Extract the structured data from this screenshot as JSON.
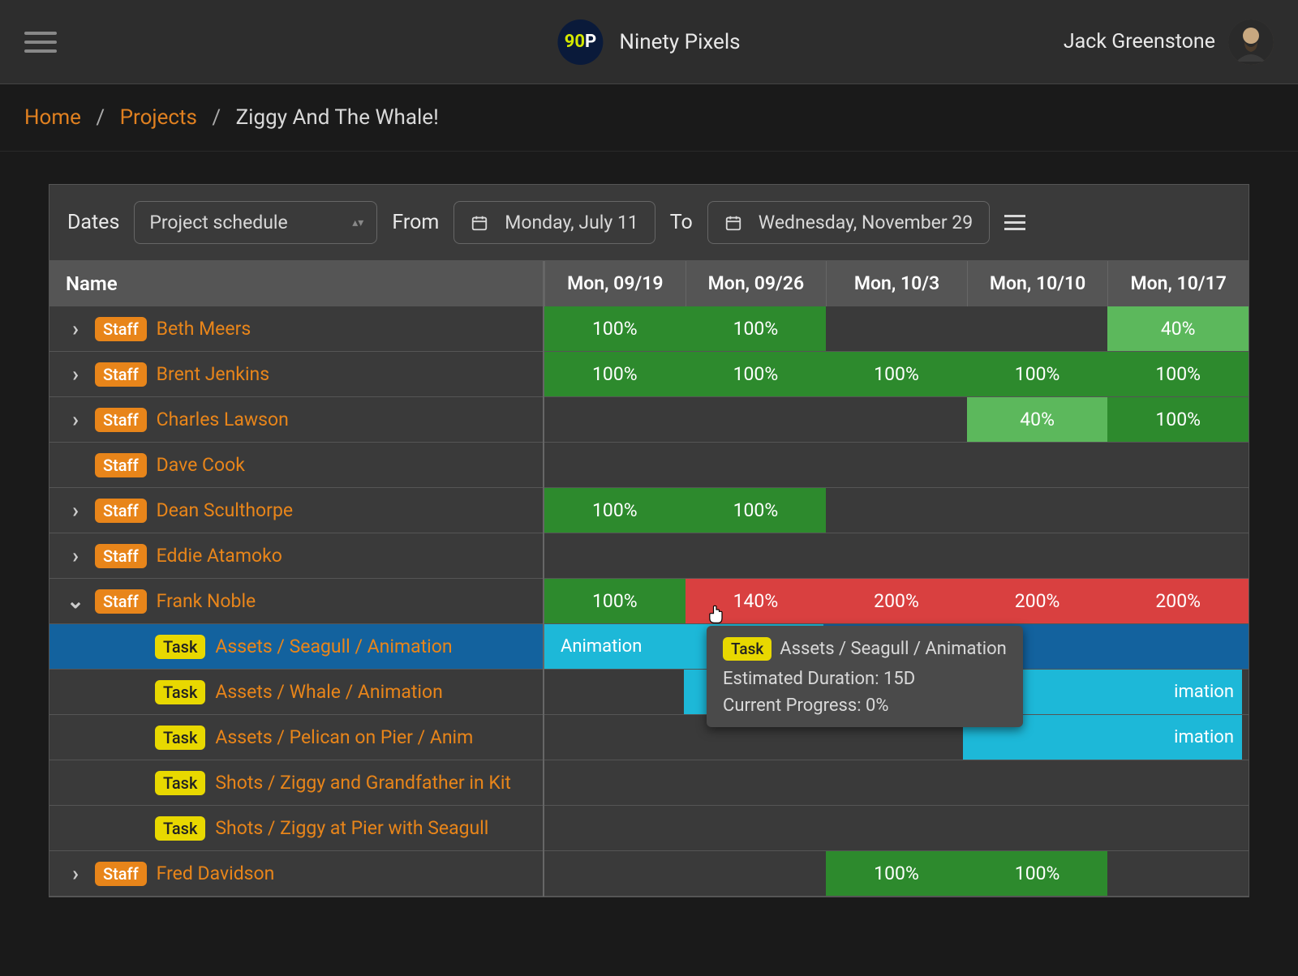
{
  "brand": {
    "logo_text_a": "90",
    "logo_text_b": "P",
    "name": "Ninety Pixels"
  },
  "user": {
    "name": "Jack Greenstone"
  },
  "breadcrumbs": {
    "home": "Home",
    "projects": "Projects",
    "current": "Ziggy And The Whale!"
  },
  "toolbar": {
    "dates_label": "Dates",
    "schedule_value": "Project schedule",
    "from_label": "From",
    "from_value": "Monday, July 11",
    "to_label": "To",
    "to_value": "Wednesday, November 29"
  },
  "columns": {
    "name": "Name",
    "dates": [
      "Mon, 09/19",
      "Mon, 09/26",
      "Mon, 10/3",
      "Mon, 10/10",
      "Mon, 10/17"
    ]
  },
  "badges": {
    "staff": "Staff",
    "task": "Task"
  },
  "rows": [
    {
      "type": "staff",
      "name": "Beth Meers",
      "expand": "right",
      "cells": [
        {
          "v": "100%",
          "c": "green-full"
        },
        {
          "v": "100%",
          "c": "green-full"
        },
        {},
        {},
        {
          "v": "40%",
          "c": "green-light"
        }
      ]
    },
    {
      "type": "staff",
      "name": "Brent Jenkins",
      "expand": "right",
      "cells": [
        {
          "v": "100%",
          "c": "green-full"
        },
        {
          "v": "100%",
          "c": "green-full"
        },
        {
          "v": "100%",
          "c": "green-full"
        },
        {
          "v": "100%",
          "c": "green-full"
        },
        {
          "v": "100%",
          "c": "green-full"
        }
      ]
    },
    {
      "type": "staff",
      "name": "Charles Lawson",
      "expand": "right",
      "cells": [
        {},
        {},
        {},
        {
          "v": "40%",
          "c": "green-light"
        },
        {
          "v": "100%",
          "c": "green-full"
        }
      ]
    },
    {
      "type": "staff",
      "name": "Dave Cook",
      "expand": "none",
      "cells": [
        {},
        {},
        {},
        {},
        {}
      ]
    },
    {
      "type": "staff",
      "name": "Dean Sculthorpe",
      "expand": "right",
      "cells": [
        {
          "v": "100%",
          "c": "green-full"
        },
        {
          "v": "100%",
          "c": "green-full"
        },
        {},
        {},
        {}
      ]
    },
    {
      "type": "staff",
      "name": "Eddie Atamoko",
      "expand": "right",
      "cells": [
        {},
        {},
        {},
        {},
        {}
      ]
    },
    {
      "type": "staff",
      "name": "Frank Noble",
      "expand": "down",
      "cells": [
        {
          "v": "100%",
          "c": "green-full"
        },
        {
          "v": "140%",
          "c": "red"
        },
        {
          "v": "200%",
          "c": "red"
        },
        {
          "v": "200%",
          "c": "red"
        },
        {
          "v": "200%",
          "c": "red"
        }
      ]
    },
    {
      "type": "task",
      "name": "Assets / Seagull / Animation",
      "selected": true,
      "bar": {
        "start": 0,
        "span": 2,
        "label": "Animation"
      }
    },
    {
      "type": "task",
      "name": "Assets / Whale / Animation",
      "bar": {
        "start": 1,
        "span": 4,
        "label": "imation",
        "labelRight": true
      }
    },
    {
      "type": "task",
      "name": "Assets / Pelican on Pier / Anim",
      "bar": {
        "start": 3,
        "span": 2,
        "label": "imation",
        "labelRight": true
      }
    },
    {
      "type": "task",
      "name": "Shots / Ziggy and Grandfather in Kit",
      "cells": [
        {},
        {},
        {},
        {},
        {}
      ]
    },
    {
      "type": "task",
      "name": "Shots / Ziggy at Pier with Seagull",
      "cells": [
        {},
        {},
        {},
        {},
        {}
      ]
    },
    {
      "type": "staff",
      "name": "Fred Davidson",
      "expand": "right",
      "cells": [
        {},
        {},
        {
          "v": "100%",
          "c": "green-full"
        },
        {
          "v": "100%",
          "c": "green-full"
        },
        {}
      ]
    }
  ],
  "tooltip": {
    "badge": "Task",
    "title": "Assets / Seagull / Animation",
    "line1": "Estimated Duration: 15D",
    "line2": "Current Progress: 0%"
  },
  "colors": {
    "staff_badge": "#e8851a",
    "task_badge": "#e8d800",
    "green_full": "#2d8a2d",
    "green_light": "#5cb85c",
    "red": "#d94040",
    "cyan": "#1db8d8",
    "selected": "#13629e",
    "link": "#e08020"
  }
}
